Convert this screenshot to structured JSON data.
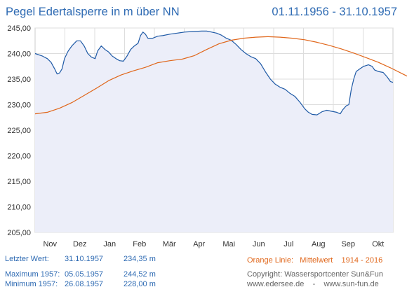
{
  "header": {
    "title": "Pegel Edertalsperre in m über NN",
    "date_range": "01.11.1956 - 31.10.1957"
  },
  "stats": {
    "last": {
      "label": "Letzter Wert:",
      "date": "31.10.1957",
      "value": "234,35 m"
    },
    "max": {
      "label": "Maximum 1957:",
      "date": "05.05.1957",
      "value": "244,52 m"
    },
    "min": {
      "label": "Minimum  1957:",
      "date": "26.08.1957",
      "value": "228,00 m"
    }
  },
  "legend_info": {
    "orange_label": "Orange Linie:",
    "orange_desc": "Mittelwert",
    "orange_years": "1914 - 2016",
    "copyright": "Copyright: Wassersportcenter Sun&Fun",
    "site1": "www.edersee.de",
    "sep": "-",
    "site2": "www.sun-fun.de"
  },
  "colors": {
    "series_1957": "#1f5aa6",
    "mean": "#e0661a",
    "fill": "#eceef9",
    "grid": "#dddddd"
  },
  "chart_data": {
    "type": "line",
    "title": "",
    "xlabel": "",
    "ylabel": "",
    "ylim": [
      205,
      245
    ],
    "y_ticks": [
      "205,00",
      "210,00",
      "215,00",
      "220,00",
      "225,00",
      "230,00",
      "235,00",
      "240,00",
      "245,00"
    ],
    "x_ticks": [
      "Nov",
      "Dez",
      "Jan",
      "Feb",
      "Mär",
      "Apr",
      "Mai",
      "Jun",
      "Jul",
      "Aug",
      "Sep",
      "Okt"
    ],
    "x_unit": "month_index",
    "grid": true,
    "series": [
      {
        "name": "",
        "color": "#1f5aa6",
        "filled": true,
        "points": [
          [
            0.0,
            240.0
          ],
          [
            0.3,
            239.5
          ],
          [
            0.5,
            239.0
          ],
          [
            0.65,
            238.3
          ],
          [
            0.8,
            237.0
          ],
          [
            0.9,
            236.0
          ],
          [
            1.0,
            236.2
          ],
          [
            1.1,
            237.0
          ],
          [
            1.2,
            239.0
          ],
          [
            1.35,
            240.5
          ],
          [
            1.5,
            241.5
          ],
          [
            1.7,
            242.5
          ],
          [
            1.85,
            242.5
          ],
          [
            2.0,
            241.5
          ],
          [
            2.15,
            240.0
          ],
          [
            2.3,
            239.3
          ],
          [
            2.45,
            239.0
          ],
          [
            2.55,
            240.5
          ],
          [
            2.7,
            241.5
          ],
          [
            2.85,
            240.8
          ],
          [
            3.0,
            240.3
          ],
          [
            3.15,
            239.5
          ],
          [
            3.3,
            239.0
          ],
          [
            3.45,
            238.6
          ],
          [
            3.6,
            238.5
          ],
          [
            3.75,
            239.5
          ],
          [
            3.9,
            240.8
          ],
          [
            4.05,
            241.5
          ],
          [
            4.2,
            242.0
          ],
          [
            4.3,
            243.5
          ],
          [
            4.4,
            244.2
          ],
          [
            4.5,
            243.8
          ],
          [
            4.6,
            243.0
          ],
          [
            4.8,
            243.0
          ],
          [
            5.0,
            243.4
          ],
          [
            5.2,
            243.5
          ],
          [
            5.5,
            243.8
          ],
          [
            5.8,
            244.0
          ],
          [
            6.1,
            244.2
          ],
          [
            6.4,
            244.3
          ],
          [
            6.8,
            244.4
          ],
          [
            7.0,
            244.4
          ],
          [
            7.2,
            244.2
          ],
          [
            7.4,
            244.0
          ],
          [
            7.6,
            243.6
          ],
          [
            7.8,
            243.0
          ],
          [
            8.0,
            242.6
          ],
          [
            8.2,
            241.8
          ],
          [
            8.4,
            240.8
          ],
          [
            8.6,
            240.0
          ],
          [
            8.8,
            239.4
          ],
          [
            9.0,
            239.0
          ],
          [
            9.2,
            238.0
          ],
          [
            9.4,
            236.4
          ],
          [
            9.6,
            235.0
          ],
          [
            9.8,
            234.0
          ],
          [
            10.0,
            233.4
          ],
          [
            10.2,
            233.0
          ],
          [
            10.4,
            232.2
          ],
          [
            10.6,
            231.6
          ],
          [
            10.8,
            230.5
          ],
          [
            11.0,
            229.2
          ],
          [
            11.15,
            228.5
          ],
          [
            11.3,
            228.1
          ],
          [
            11.5,
            228.0
          ],
          [
            11.7,
            228.6
          ],
          [
            11.9,
            228.9
          ],
          [
            12.1,
            228.7
          ],
          [
            12.3,
            228.5
          ],
          [
            12.45,
            228.2
          ],
          [
            12.55,
            229.0
          ],
          [
            12.7,
            229.8
          ],
          [
            12.8,
            230.0
          ],
          [
            12.9,
            233.0
          ],
          [
            13.0,
            235.0
          ],
          [
            13.1,
            236.5
          ],
          [
            13.25,
            237.0
          ],
          [
            13.4,
            237.5
          ],
          [
            13.6,
            237.8
          ],
          [
            13.75,
            237.5
          ],
          [
            13.85,
            236.8
          ],
          [
            14.0,
            236.5
          ],
          [
            14.2,
            236.3
          ],
          [
            14.35,
            235.5
          ],
          [
            14.5,
            234.5
          ],
          [
            14.6,
            234.35
          ]
        ]
      },
      {
        "name": "",
        "color": "#e0661a",
        "filled": false,
        "points": [
          [
            0.0,
            228.2
          ],
          [
            0.5,
            228.5
          ],
          [
            1.0,
            229.3
          ],
          [
            1.5,
            230.4
          ],
          [
            2.0,
            231.8
          ],
          [
            2.5,
            233.2
          ],
          [
            3.0,
            234.7
          ],
          [
            3.5,
            235.8
          ],
          [
            4.0,
            236.6
          ],
          [
            4.5,
            237.3
          ],
          [
            5.0,
            238.2
          ],
          [
            5.5,
            238.6
          ],
          [
            6.0,
            238.9
          ],
          [
            6.5,
            239.6
          ],
          [
            7.0,
            240.8
          ],
          [
            7.5,
            241.9
          ],
          [
            8.0,
            242.6
          ],
          [
            8.5,
            243.0
          ],
          [
            9.0,
            243.2
          ],
          [
            9.5,
            243.3
          ],
          [
            10.0,
            243.2
          ],
          [
            10.5,
            243.0
          ],
          [
            11.0,
            242.7
          ],
          [
            11.5,
            242.2
          ],
          [
            12.0,
            241.6
          ],
          [
            12.5,
            240.9
          ],
          [
            13.0,
            240.1
          ],
          [
            13.5,
            239.2
          ],
          [
            14.0,
            238.3
          ],
          [
            14.5,
            237.2
          ],
          [
            15.0,
            236.0
          ],
          [
            15.5,
            234.8
          ],
          [
            16.0,
            233.5
          ],
          [
            16.5,
            232.1
          ],
          [
            17.0,
            230.8
          ],
          [
            17.5,
            229.8
          ],
          [
            18.0,
            229.0
          ],
          [
            18.5,
            228.5
          ],
          [
            19.0,
            228.2
          ]
        ]
      }
    ]
  }
}
